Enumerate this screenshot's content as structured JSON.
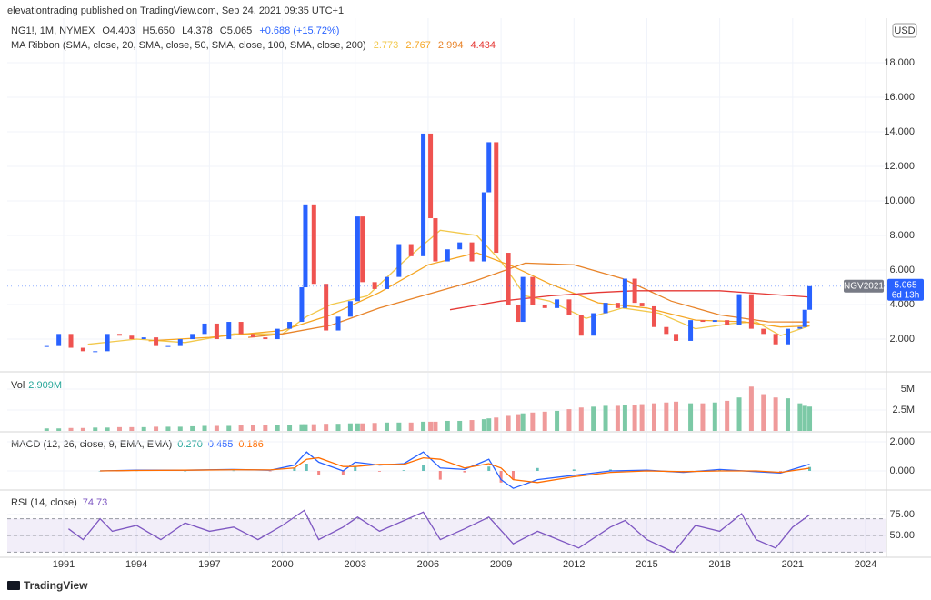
{
  "header": {
    "published": "elevationtrading published on TradingView.com, Sep 24, 2021 09:35 UTC+1",
    "symbol": "NG1!, 1M, NYMEX",
    "ohlc": [
      "O4.403",
      "H5.650",
      "L4.378",
      "C5.065",
      "+0.688 (+15.72%)"
    ],
    "ma_ribbon": "MA Ribbon (SMA, close, 20, SMA, close, 50, SMA, close, 100, SMA, close, 200)",
    "currency": "USD",
    "logo": "TradingView"
  },
  "chart_data": [
    {
      "type": "candlestick",
      "up_color": "#2962ff",
      "down_color": "#ef5350",
      "x": [
        1990.3,
        1990.8,
        1991.3,
        1991.8,
        1992.3,
        1992.8,
        1993.3,
        1993.8,
        1994.3,
        1994.8,
        1995.3,
        1995.8,
        1996.3,
        1996.8,
        1997.3,
        1997.8,
        1998.3,
        1998.8,
        1999.3,
        1999.8,
        2000.3,
        2000.8,
        2000.95,
        2001.3,
        2001.8,
        2002.3,
        2002.8,
        2003.1,
        2003.3,
        2003.8,
        2004.3,
        2004.8,
        2005.3,
        2005.8,
        2006.1,
        2006.3,
        2006.8,
        2007.3,
        2007.8,
        2008.3,
        2008.5,
        2008.8,
        2009.3,
        2009.7,
        2009.9,
        2010.3,
        2010.8,
        2011.3,
        2011.8,
        2012.3,
        2012.8,
        2013.3,
        2013.8,
        2014.1,
        2014.5,
        2014.8,
        2015.3,
        2015.8,
        2016.2,
        2016.8,
        2017.3,
        2017.8,
        2018.3,
        2018.8,
        2019.3,
        2019.8,
        2020.3,
        2020.8,
        2021.3,
        2021.5,
        2021.7
      ],
      "values": [
        1.6,
        2.3,
        1.5,
        1.3,
        1.3,
        2.3,
        2.2,
        2.0,
        2.1,
        1.6,
        1.6,
        2.0,
        2.3,
        2.9,
        2.0,
        3.0,
        2.3,
        2.1,
        2.0,
        2.6,
        3.0,
        5.0,
        9.8,
        5.2,
        2.5,
        3.3,
        4.2,
        9.1,
        5.3,
        4.9,
        5.6,
        7.5,
        6.8,
        13.9,
        9.0,
        6.5,
        7.2,
        7.6,
        6.5,
        10.5,
        13.4,
        7.0,
        4.0,
        3.0,
        5.6,
        4.0,
        3.8,
        4.3,
        3.4,
        2.2,
        3.5,
        4.1,
        3.8,
        5.5,
        4.1,
        3.9,
        2.7,
        2.3,
        1.9,
        3.1,
        3.0,
        3.1,
        2.8,
        4.6,
        2.6,
        2.3,
        1.7,
        2.6,
        2.7,
        3.7,
        5.065
      ],
      "overlays": [
        {
          "color": "#f2c84b",
          "last_label": "2.773",
          "x": [
            1992.0,
            1994,
            1996,
            1998,
            2000,
            2001,
            2002,
            2003.5,
            2005,
            2006.5,
            2008,
            2009,
            2010,
            2011,
            2012.5,
            2014,
            2015.5,
            2017,
            2018.5,
            2019.5,
            2020.5,
            2021.7
          ],
          "values": [
            1.7,
            2.0,
            1.8,
            2.3,
            2.3,
            3.3,
            4.0,
            4.5,
            6.5,
            8.3,
            8.0,
            6.5,
            4.5,
            4.2,
            3.2,
            3.8,
            3.5,
            2.6,
            2.9,
            3.0,
            2.2,
            2.773
          ]
        },
        {
          "color": "#f5a623",
          "last_label": "2.767",
          "x": [
            1994.5,
            1997,
            2000,
            2002,
            2004,
            2006,
            2008,
            2009.5,
            2011,
            2013,
            2015,
            2017,
            2019,
            2020.5,
            2021.7
          ],
          "values": [
            1.9,
            2.1,
            2.5,
            3.4,
            4.7,
            6.3,
            7.0,
            6.2,
            5.2,
            4.1,
            3.8,
            3.1,
            3.0,
            2.7,
            2.767
          ]
        },
        {
          "color": "#e8842a",
          "last_label": "2.994",
          "x": [
            1998.6,
            2000,
            2002,
            2004,
            2006,
            2008,
            2010,
            2012,
            2014,
            2016,
            2018,
            2020,
            2021.7
          ],
          "values": [
            2.1,
            2.3,
            2.8,
            3.8,
            4.6,
            5.4,
            6.4,
            6.3,
            5.5,
            4.2,
            3.4,
            3.0,
            2.994
          ]
        },
        {
          "color": "#e53935",
          "last_label": "4.434",
          "x": [
            2006.9,
            2009,
            2011,
            2013,
            2014.5,
            2016,
            2018,
            2020,
            2021.7
          ],
          "values": [
            3.7,
            4.2,
            4.5,
            4.7,
            4.8,
            4.8,
            4.8,
            4.6,
            4.434
          ]
        }
      ],
      "xlim": [
        1988.68,
        2024.86
      ],
      "xticks": [
        1991,
        1994,
        1997,
        2000,
        2003,
        2006,
        2009,
        2012,
        2015,
        2018,
        2021,
        2024
      ],
      "ylim": [
        0.16,
        20.58
      ],
      "yticks": [
        {
          "value": 2,
          "label": "2.000"
        },
        {
          "value": 4,
          "label": "4.000"
        },
        {
          "value": 6,
          "label": "6.000"
        },
        {
          "value": 8,
          "label": "8.000"
        },
        {
          "value": 10,
          "label": "10.000"
        },
        {
          "value": 12,
          "label": "12.000"
        },
        {
          "value": 14,
          "label": "14.000"
        },
        {
          "value": 16,
          "label": "16.000"
        },
        {
          "value": 18,
          "label": "18.000"
        }
      ],
      "grid": true,
      "symbol_tag": "NGV2021",
      "countdown": "6d 13h"
    },
    {
      "type": "bar",
      "legend": "Vol",
      "last_label": "2.909M",
      "up_color": "#7cc9a6",
      "down_color": "#ef9a9a",
      "x": [
        1990.3,
        1990.8,
        1991.3,
        1991.8,
        1992.3,
        1992.8,
        1993.3,
        1993.8,
        1994.3,
        1994.8,
        1995.3,
        1995.8,
        1996.3,
        1996.8,
        1997.3,
        1997.8,
        1998.3,
        1998.8,
        1999.3,
        1999.8,
        2000.3,
        2000.8,
        2000.95,
        2001.3,
        2001.8,
        2002.3,
        2002.8,
        2003.1,
        2003.3,
        2003.8,
        2004.3,
        2004.8,
        2005.3,
        2005.8,
        2006.1,
        2006.3,
        2006.8,
        2007.3,
        2007.8,
        2008.3,
        2008.5,
        2008.8,
        2009.3,
        2009.7,
        2009.9,
        2010.3,
        2010.8,
        2011.3,
        2011.8,
        2012.3,
        2012.8,
        2013.3,
        2013.8,
        2014.1,
        2014.5,
        2014.8,
        2015.3,
        2015.8,
        2016.2,
        2016.8,
        2017.3,
        2017.8,
        2018.3,
        2018.8,
        2019.3,
        2019.8,
        2020.3,
        2020.8,
        2021.3,
        2021.5,
        2021.7
      ],
      "values": [
        0.3,
        0.3,
        0.35,
        0.35,
        0.4,
        0.4,
        0.45,
        0.45,
        0.45,
        0.5,
        0.5,
        0.5,
        0.55,
        0.6,
        0.6,
        0.6,
        0.65,
        0.7,
        0.7,
        0.7,
        0.75,
        0.8,
        0.8,
        0.8,
        0.85,
        0.85,
        0.9,
        0.9,
        0.9,
        0.95,
        1.0,
        1.0,
        1.0,
        1.1,
        1.1,
        1.1,
        1.2,
        1.2,
        1.3,
        1.4,
        1.5,
        1.6,
        1.8,
        2.0,
        2.1,
        2.2,
        2.3,
        2.4,
        2.6,
        2.8,
        2.9,
        3.0,
        3.0,
        3.1,
        3.1,
        3.2,
        3.3,
        3.4,
        3.5,
        3.3,
        3.3,
        3.4,
        3.6,
        4.0,
        5.3,
        4.4,
        4.0,
        3.9,
        3.3,
        3.0,
        2.909
      ],
      "xlim": [
        1988.68,
        2024.86
      ],
      "ylim": [
        0,
        6.96
      ],
      "yticks": [
        {
          "value": 5,
          "label": "5M"
        },
        {
          "value": 2.5,
          "label": "2.5M"
        }
      ],
      "grid": true
    },
    {
      "type": "macd",
      "legend": "MACD (12, 26, close, 9, EMA, EMA)",
      "x": [
        1992.5,
        1994,
        1996,
        1998,
        1999.5,
        2000.5,
        2001,
        2001.5,
        2002.5,
        2003,
        2004,
        2005,
        2005.8,
        2006.5,
        2007.5,
        2008.5,
        2009,
        2009.5,
        2010.5,
        2012,
        2013.5,
        2015,
        2016.5,
        2018,
        2019.5,
        2020.5,
        2021.7
      ],
      "histogram": {
        "last_label": "0.270",
        "up_color": "#26a69a",
        "down_color": "#ef5350",
        "values": [
          0,
          0.02,
          0,
          0.02,
          -0.02,
          0.2,
          0.5,
          -0.3,
          -0.3,
          0.3,
          -0.05,
          0.05,
          0.4,
          -0.6,
          -0.1,
          0.3,
          -0.8,
          -0.6,
          0.2,
          0.1,
          0.1,
          0.05,
          -0.05,
          0.1,
          -0.05,
          -0.05,
          0.27
        ]
      },
      "series": [
        {
          "color": "#2962ff",
          "last_label": "0.455",
          "values": [
            0,
            0.05,
            0.05,
            0.1,
            0.05,
            0.4,
            1.3,
            0.6,
            0,
            0.6,
            0.4,
            0.5,
            1.3,
            0.2,
            0.1,
            0.8,
            -0.6,
            -1.2,
            -0.6,
            -0.3,
            0,
            0.05,
            -0.1,
            0.1,
            -0.05,
            -0.15,
            0.455
          ]
        },
        {
          "color": "#ff6d00",
          "last_label": "0.186",
          "values": [
            0,
            0.03,
            0.05,
            0.08,
            0.07,
            0.2,
            0.8,
            0.9,
            0.3,
            0.3,
            0.45,
            0.45,
            0.9,
            0.8,
            0.2,
            0.5,
            0.2,
            -0.6,
            -0.8,
            -0.4,
            -0.1,
            0,
            -0.05,
            0,
            0,
            -0.1,
            0.186
          ]
        }
      ],
      "xlim": [
        1988.68,
        2024.86
      ],
      "ylim": [
        -1.25,
        2.625
      ],
      "yticks": [
        {
          "value": 2,
          "label": "2.000"
        },
        {
          "value": 0,
          "label": "0.000"
        }
      ],
      "grid": true
    },
    {
      "type": "line",
      "legend": "RSI (14, close)",
      "x": [
        1991.2,
        1991.8,
        1992.5,
        1993,
        1994,
        1995,
        1996,
        1997,
        1998,
        1999,
        2000,
        2000.9,
        2001.5,
        2002.5,
        2003.1,
        2004,
        2005.8,
        2006.5,
        2007.5,
        2008.5,
        2009.5,
        2010.5,
        2012.2,
        2013.5,
        2014.1,
        2015,
        2016.1,
        2017,
        2018,
        2018.9,
        2019.5,
        2020.3,
        2021,
        2021.7
      ],
      "series": [
        {
          "color": "#7e57c2",
          "last_label": "74.73",
          "values": [
            58,
            45,
            70,
            55,
            62,
            45,
            65,
            55,
            60,
            45,
            62,
            80,
            45,
            60,
            72,
            55,
            78,
            45,
            58,
            72,
            40,
            55,
            35,
            60,
            68,
            45,
            30,
            62,
            55,
            76,
            45,
            35,
            60,
            74.73
          ]
        }
      ],
      "bands": [
        70,
        50,
        30
      ],
      "band_color": "#7e57c2",
      "xlim": [
        1988.68,
        2024.86
      ],
      "ylim": [
        25,
        103.3
      ],
      "yticks": [
        {
          "value": 75,
          "label": "75.00"
        },
        {
          "value": 50,
          "label": "50.00"
        }
      ],
      "grid": true
    }
  ]
}
